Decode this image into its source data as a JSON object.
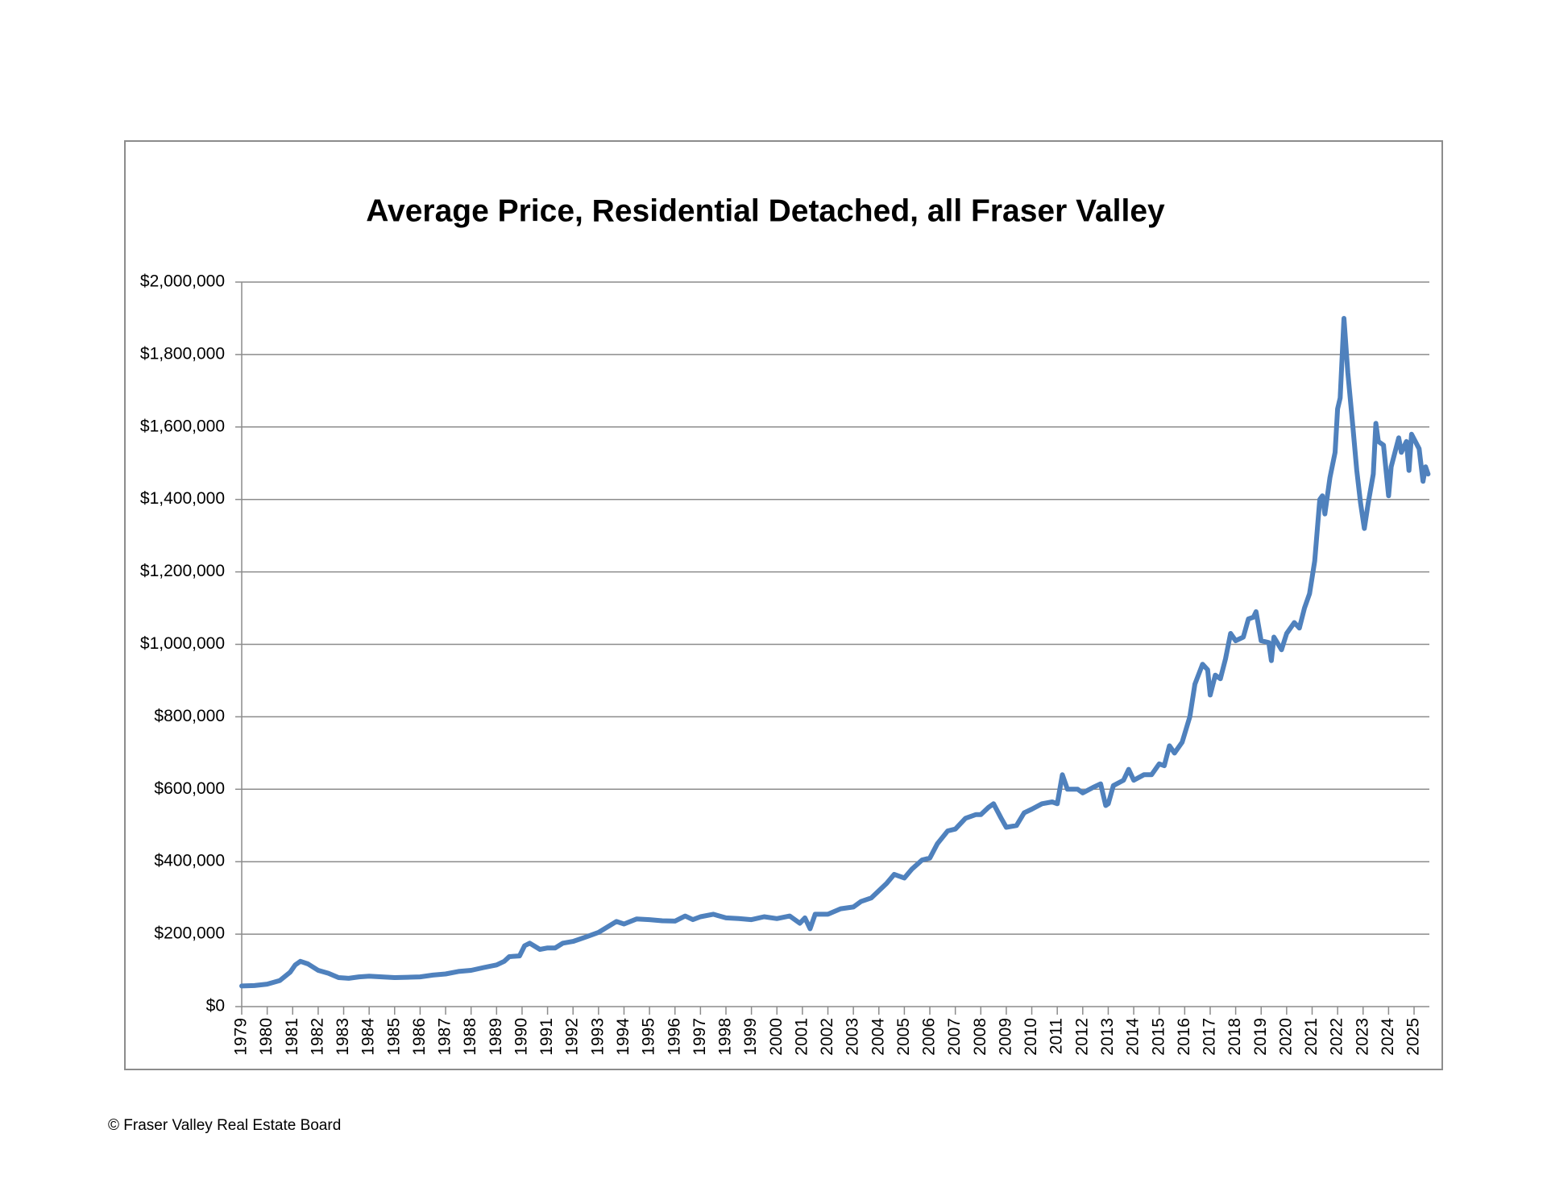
{
  "chart_data": {
    "type": "line",
    "title": "Average Price, Residential Detached, all Fraser Valley",
    "footer": "© Fraser Valley Real Estate Board",
    "xlim": [
      1979,
      2025.6
    ],
    "xticks": [
      1979,
      1980,
      1981,
      1982,
      1983,
      1984,
      1985,
      1986,
      1987,
      1988,
      1989,
      1990,
      1991,
      1992,
      1993,
      1994,
      1995,
      1996,
      1997,
      1998,
      1999,
      2000,
      2001,
      2002,
      2003,
      2004,
      2005,
      2006,
      2007,
      2008,
      2009,
      2010,
      2011,
      2012,
      2013,
      2014,
      2015,
      2016,
      2017,
      2018,
      2019,
      2020,
      2021,
      2022,
      2023,
      2024,
      2025
    ],
    "ylim": [
      0,
      2000000
    ],
    "yticks": [
      {
        "value": 0,
        "label": "$0"
      },
      {
        "value": 200000,
        "label": "$200,000"
      },
      {
        "value": 400000,
        "label": "$400,000"
      },
      {
        "value": 600000,
        "label": "$600,000"
      },
      {
        "value": 800000,
        "label": "$800,000"
      },
      {
        "value": 1000000,
        "label": "$1,000,000"
      },
      {
        "value": 1200000,
        "label": "$1,200,000"
      },
      {
        "value": 1400000,
        "label": "$1,400,000"
      },
      {
        "value": 1600000,
        "label": "$1,600,000"
      },
      {
        "value": 1800000,
        "label": "$1,800,000"
      },
      {
        "value": 2000000,
        "label": "$2,000,000"
      }
    ],
    "grid": true,
    "series": [
      {
        "name": "Average Price",
        "color": "#4f81bd",
        "x": [
          1979.0,
          1979.5,
          1980.0,
          1980.5,
          1980.9,
          1981.1,
          1981.3,
          1981.6,
          1982.0,
          1982.4,
          1982.8,
          1983.2,
          1983.6,
          1984.0,
          1984.5,
          1985.0,
          1985.5,
          1986.0,
          1986.5,
          1987.0,
          1987.5,
          1988.0,
          1988.5,
          1989.0,
          1989.3,
          1989.5,
          1989.9,
          1990.1,
          1990.3,
          1990.7,
          1991.0,
          1991.3,
          1991.6,
          1992.0,
          1992.5,
          1993.0,
          1993.4,
          1993.7,
          1994.0,
          1994.5,
          1995.0,
          1995.5,
          1996.0,
          1996.4,
          1996.7,
          1997.0,
          1997.5,
          1998.0,
          1998.5,
          1999.0,
          1999.5,
          2000.0,
          2000.5,
          2000.9,
          2001.1,
          2001.3,
          2001.5,
          2002.0,
          2002.5,
          2003.0,
          2003.3,
          2003.7,
          2004.0,
          2004.3,
          2004.6,
          2005.0,
          2005.3,
          2005.7,
          2006.0,
          2006.3,
          2006.7,
          2007.0,
          2007.4,
          2007.8,
          2008.0,
          2008.3,
          2008.5,
          2008.8,
          2009.0,
          2009.4,
          2009.7,
          2010.0,
          2010.4,
          2010.8,
          2011.0,
          2011.2,
          2011.4,
          2011.8,
          2012.0,
          2012.4,
          2012.7,
          2012.9,
          2013.0,
          2013.2,
          2013.6,
          2013.8,
          2014.0,
          2014.4,
          2014.7,
          2015.0,
          2015.2,
          2015.4,
          2015.6,
          2015.9,
          2016.2,
          2016.4,
          2016.7,
          2016.9,
          2017.0,
          2017.2,
          2017.4,
          2017.6,
          2017.8,
          2018.0,
          2018.3,
          2018.5,
          2018.7,
          2018.8,
          2019.0,
          2019.3,
          2019.4,
          2019.5,
          2019.8,
          2020.0,
          2020.3,
          2020.5,
          2020.7,
          2020.9,
          2021.1,
          2021.3,
          2021.4,
          2021.5,
          2021.7,
          2021.9,
          2022.0,
          2022.1,
          2022.25,
          2022.4,
          2022.6,
          2022.75,
          2022.9,
          2023.05,
          2023.2,
          2023.4,
          2023.5,
          2023.6,
          2023.8,
          2024.0,
          2024.1,
          2024.4,
          2024.5,
          2024.7,
          2024.8,
          2024.9,
          2025.2,
          2025.35,
          2025.45,
          2025.55
        ],
        "values": [
          57000,
          58000,
          62000,
          72000,
          95000,
          115000,
          125000,
          118000,
          100000,
          92000,
          80000,
          78000,
          82000,
          84000,
          82000,
          80000,
          81000,
          82000,
          87000,
          90000,
          97000,
          100000,
          108000,
          115000,
          125000,
          138000,
          140000,
          168000,
          175000,
          158000,
          162000,
          162000,
          175000,
          180000,
          192000,
          205000,
          222000,
          235000,
          228000,
          242000,
          240000,
          237000,
          236000,
          250000,
          240000,
          248000,
          255000,
          245000,
          243000,
          240000,
          248000,
          243000,
          250000,
          230000,
          245000,
          215000,
          255000,
          255000,
          270000,
          275000,
          290000,
          300000,
          320000,
          340000,
          365000,
          355000,
          380000,
          405000,
          410000,
          450000,
          485000,
          490000,
          520000,
          530000,
          530000,
          550000,
          560000,
          520000,
          495000,
          500000,
          535000,
          545000,
          560000,
          565000,
          560000,
          640000,
          600000,
          600000,
          590000,
          605000,
          615000,
          555000,
          560000,
          610000,
          625000,
          655000,
          625000,
          640000,
          640000,
          670000,
          665000,
          720000,
          700000,
          730000,
          800000,
          890000,
          945000,
          930000,
          860000,
          915000,
          905000,
          960000,
          1030000,
          1010000,
          1020000,
          1070000,
          1075000,
          1090000,
          1010000,
          1005000,
          955000,
          1020000,
          985000,
          1030000,
          1060000,
          1045000,
          1100000,
          1140000,
          1230000,
          1400000,
          1410000,
          1360000,
          1460000,
          1530000,
          1650000,
          1680000,
          1900000,
          1750000,
          1600000,
          1480000,
          1390000,
          1320000,
          1390000,
          1470000,
          1610000,
          1560000,
          1550000,
          1410000,
          1490000,
          1570000,
          1530000,
          1560000,
          1480000,
          1580000,
          1540000,
          1450000,
          1490000,
          1470000
        ]
      }
    ]
  }
}
